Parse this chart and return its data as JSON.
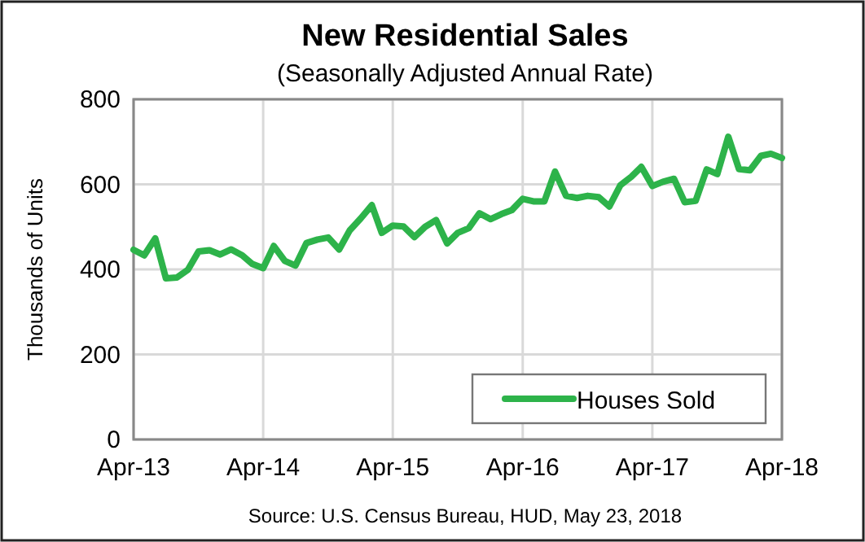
{
  "chart_data": {
    "type": "line",
    "title": "New Residential Sales",
    "subtitle": "(Seasonally Adjusted Annual Rate)",
    "ylabel": "Thousands of Units",
    "annotations": [
      "Source:  U.S. Census Bureau, HUD, May 23, 2018"
    ],
    "x": [
      "2013-04",
      "2013-05",
      "2013-06",
      "2013-07",
      "2013-08",
      "2013-09",
      "2013-10",
      "2013-11",
      "2013-12",
      "2014-01",
      "2014-02",
      "2014-03",
      "2014-04",
      "2014-05",
      "2014-06",
      "2014-07",
      "2014-08",
      "2014-09",
      "2014-10",
      "2014-11",
      "2014-12",
      "2015-01",
      "2015-02",
      "2015-03",
      "2015-04",
      "2015-05",
      "2015-06",
      "2015-07",
      "2015-08",
      "2015-09",
      "2015-10",
      "2015-11",
      "2015-12",
      "2016-01",
      "2016-02",
      "2016-03",
      "2016-04",
      "2016-05",
      "2016-06",
      "2016-07",
      "2016-08",
      "2016-09",
      "2016-10",
      "2016-11",
      "2016-12",
      "2017-01",
      "2017-02",
      "2017-03",
      "2017-04",
      "2017-05",
      "2017-06",
      "2017-07",
      "2017-08",
      "2017-09",
      "2017-10",
      "2017-11",
      "2017-12",
      "2018-01",
      "2018-02",
      "2018-03",
      "2018-04"
    ],
    "series": [
      {
        "name": "Houses Sold",
        "color": "#2db34a",
        "values": [
          446,
          433,
          473,
          379,
          381,
          399,
          442,
          445,
          435,
          447,
          433,
          413,
          403,
          455,
          420,
          409,
          462,
          470,
          475,
          447,
          492,
          520,
          551,
          486,
          503,
          501,
          476,
          500,
          516,
          461,
          486,
          497,
          532,
          518,
          530,
          539,
          566,
          560,
          560,
          630,
          573,
          568,
          573,
          570,
          548,
          598,
          618,
          641,
          596,
          606,
          613,
          558,
          561,
          635,
          624,
          712,
          636,
          633,
          667,
          672,
          662
        ]
      }
    ],
    "xlim": [
      "2013-04",
      "2018-04"
    ],
    "xticks": [
      {
        "value": "2013-04",
        "label": "Apr-13"
      },
      {
        "value": "2014-04",
        "label": "Apr-14"
      },
      {
        "value": "2015-04",
        "label": "Apr-15"
      },
      {
        "value": "2016-04",
        "label": "Apr-16"
      },
      {
        "value": "2017-04",
        "label": "Apr-17"
      },
      {
        "value": "2018-04",
        "label": "Apr-18"
      }
    ],
    "ylim": [
      0,
      800
    ],
    "yticks": [
      0,
      200,
      400,
      600,
      800
    ],
    "grid": true,
    "legend": "bottom right",
    "line_style": "solid"
  }
}
